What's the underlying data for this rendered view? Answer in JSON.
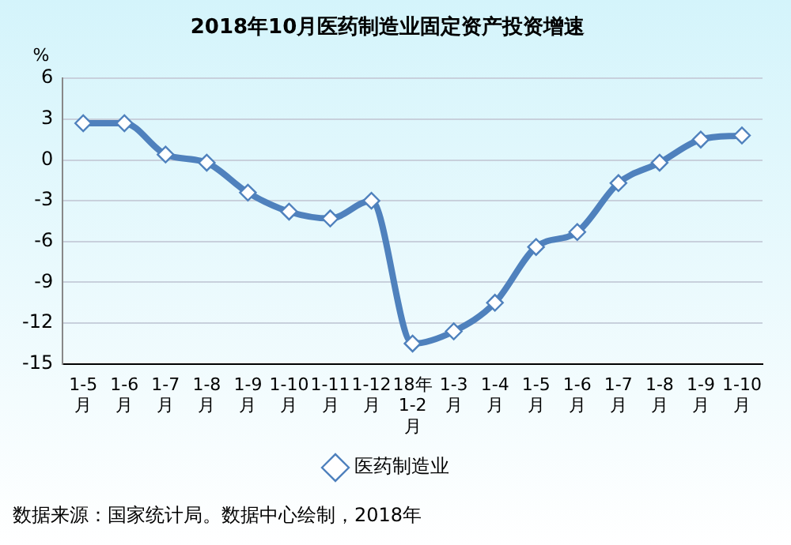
{
  "chart_data": {
    "type": "line",
    "title": "2018年10月医药制造业固定资产投资增速",
    "ylabel": "%",
    "categories": [
      "1-5月",
      "1-6月",
      "1-7月",
      "1-8月",
      "1-9月",
      "1-10月",
      "1-11月",
      "1-12月",
      "18年1-2月",
      "1-3月",
      "1-4月",
      "1-5月",
      "1-6月",
      "1-7月",
      "1-8月",
      "1-9月",
      "1-10月"
    ],
    "series": [
      {
        "name": "医药制造业",
        "color": "#4f81bd",
        "values": [
          2.7,
          2.7,
          0.4,
          -0.2,
          -2.4,
          -3.8,
          -4.3,
          -3.0,
          -13.5,
          -12.6,
          -10.5,
          -6.4,
          -5.3,
          -1.7,
          -0.2,
          1.5,
          1.8
        ]
      }
    ],
    "ylim": [
      -15,
      6
    ],
    "yticks": [
      -15,
      -12,
      -9,
      -6,
      -3,
      0,
      3,
      6
    ],
    "grid": "y",
    "legend": "bottom",
    "marker": "diamond",
    "line_style": "solid",
    "annotations": [
      "数据来源：国家统计局。数据中心绘制，2018年"
    ]
  }
}
